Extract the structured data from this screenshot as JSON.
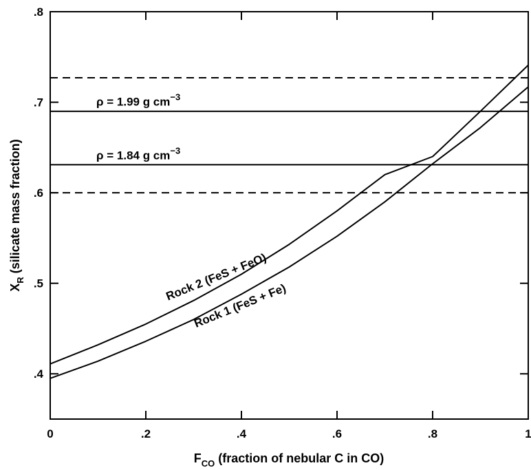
{
  "chart_data": {
    "type": "line",
    "xlabel": {
      "main": "F",
      "sub": "CO",
      "rest": " (fraction of nebular C in CO)"
    },
    "ylabel": {
      "main": "X",
      "sub": "R",
      "rest": " (silicate mass fraction)"
    },
    "xlim": [
      0,
      1
    ],
    "ylim": [
      0.35,
      0.8
    ],
    "x_ticks": [
      {
        "value": 0,
        "label": "0"
      },
      {
        "value": 0.2,
        "label": ".2"
      },
      {
        "value": 0.4,
        "label": ".4"
      },
      {
        "value": 0.6,
        "label": ".6"
      },
      {
        "value": 0.8,
        "label": ".8"
      },
      {
        "value": 1.0,
        "label": "1"
      }
    ],
    "y_ticks": [
      {
        "value": 0.4,
        "label": ".4"
      },
      {
        "value": 0.5,
        "label": ".5"
      },
      {
        "value": 0.6,
        "label": ".6"
      },
      {
        "value": 0.7,
        "label": ".7"
      },
      {
        "value": 0.8,
        "label": ".8"
      }
    ],
    "grid": false,
    "horizontal_lines": [
      {
        "y": 0.727,
        "style": "dashed"
      },
      {
        "y": 0.69,
        "style": "solid",
        "label_prefix": "ρ = 1.99 g cm",
        "label_sup": "−3"
      },
      {
        "y": 0.631,
        "style": "solid",
        "label_prefix": "ρ = 1.84 g cm",
        "label_sup": "−3"
      },
      {
        "y": 0.6,
        "style": "dashed"
      }
    ],
    "series": [
      {
        "name": "Rock 2 (FeS + FeO)",
        "x": [
          0,
          0.1,
          0.2,
          0.3,
          0.4,
          0.5,
          0.6,
          0.7,
          0.8,
          0.9,
          1.0
        ],
        "y": [
          0.411,
          0.432,
          0.455,
          0.481,
          0.51,
          0.543,
          0.58,
          0.62,
          0.64,
          0.69,
          0.741
        ]
      },
      {
        "name": "Rock 1 (FeS + Fe)",
        "x": [
          0,
          0.1,
          0.2,
          0.3,
          0.4,
          0.5,
          0.6,
          0.7,
          0.8,
          0.9,
          1.0
        ],
        "y": [
          0.395,
          0.414,
          0.436,
          0.46,
          0.488,
          0.518,
          0.552,
          0.59,
          0.632,
          0.672,
          0.717
        ]
      }
    ]
  }
}
